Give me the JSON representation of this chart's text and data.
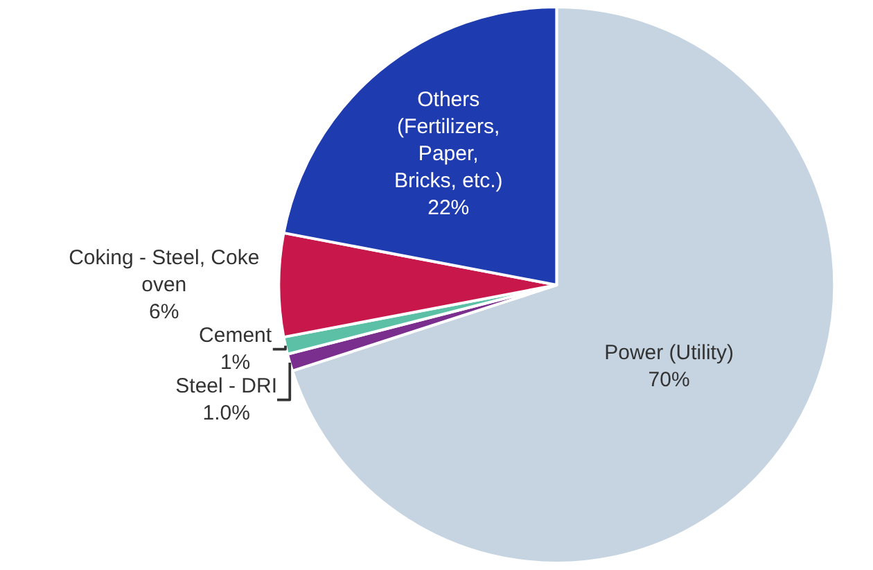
{
  "chart_data": {
    "type": "pie",
    "categories": [
      "Power (Utility)",
      "Steel - DRI",
      "Cement",
      "Coking - Steel, Coke\noven",
      "Others\n(Fertilizers,\nPaper,\nBricks, etc.)"
    ],
    "values": [
      70,
      1.0,
      1,
      6,
      22
    ],
    "value_labels": [
      "70%",
      "1.0%",
      "1%",
      "6%",
      "22%"
    ],
    "colors": [
      "#c6d4e1",
      "#7a2f8f",
      "#5cc0a6",
      "#c8174b",
      "#1f3bb0"
    ],
    "legend": false
  }
}
